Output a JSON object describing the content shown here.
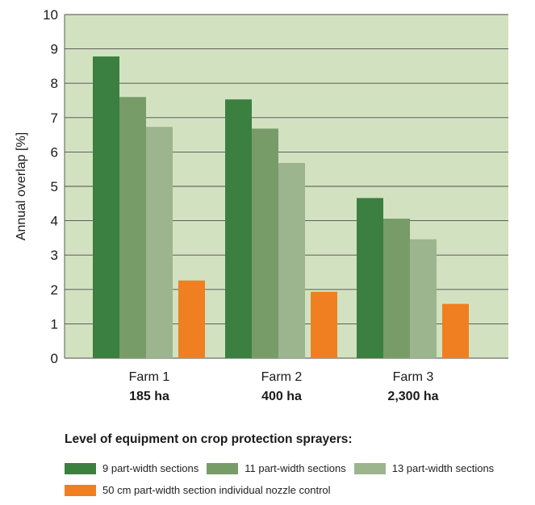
{
  "chart_data": {
    "type": "bar",
    "categories": [
      "Farm 1",
      "Farm 2",
      "Farm 3"
    ],
    "category_sublabels": [
      "185 ha",
      "400 ha",
      "2,300 ha"
    ],
    "ylabel": "Annual overlap [%]",
    "xlabel": "",
    "ylim": [
      0,
      10
    ],
    "yticks": [
      "0",
      "1",
      "2",
      "3",
      "4",
      "5",
      "6",
      "7",
      "8",
      "9",
      "10"
    ],
    "grid": true,
    "plot_background": "#d2e2c0",
    "series": [
      {
        "name": "9 part-width sections",
        "color": "#3b8040",
        "values": [
          8.78,
          7.53,
          4.66
        ]
      },
      {
        "name": "11 part-width sections",
        "color": "#789c68",
        "values": [
          7.6,
          6.68,
          4.06
        ]
      },
      {
        "name": "13 part-width sections",
        "color": "#9cb58e",
        "values": [
          6.73,
          5.68,
          3.46
        ]
      },
      {
        "name": "50 cm part-width section individual nozzle control",
        "color": "#f07f22",
        "values": [
          2.26,
          1.93,
          1.58
        ]
      }
    ],
    "legend_title": "Level of equipment on crop protection sprayers:",
    "legend_position": "bottom"
  }
}
